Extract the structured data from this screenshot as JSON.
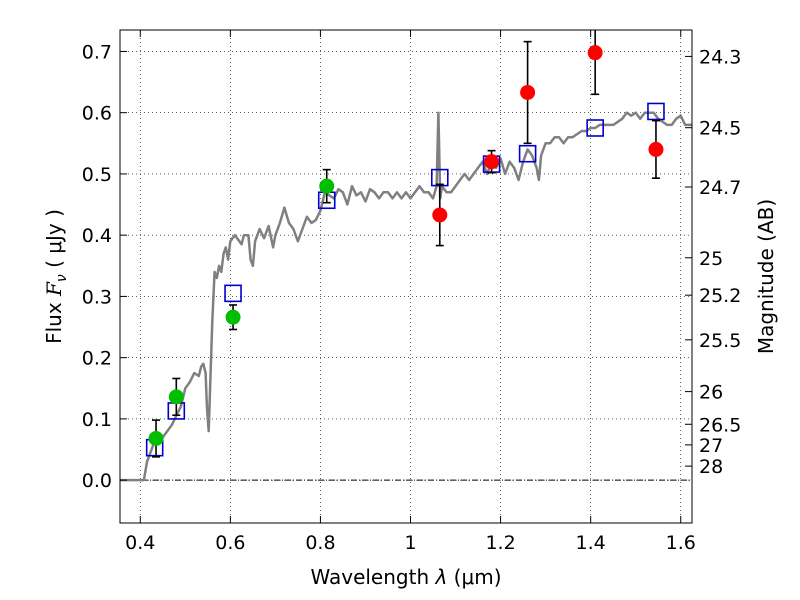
{
  "chart_data": {
    "type": "scatter",
    "xlabel": "Wavelength  λ (μm)",
    "ylabel": "Flux  Fν  ( μJy )",
    "ylabel_parts": {
      "pre": "Flux  ",
      "F": "F",
      "nu": "ν",
      "post": "  ( μJy )"
    },
    "xlabel_parts": {
      "pre": "Wavelength  ",
      "lambda": "λ",
      "post": " (μm)"
    },
    "y2label": "Magnitude (AB)",
    "xlim": [
      0.355,
      1.625
    ],
    "ylim": [
      -0.07,
      0.735
    ],
    "grid": true,
    "x_ticks": [
      {
        "v": 0.4,
        "label": "0.4"
      },
      {
        "v": 0.6,
        "label": "0.6"
      },
      {
        "v": 0.8,
        "label": "0.8"
      },
      {
        "v": 1.0,
        "label": "1"
      },
      {
        "v": 1.2,
        "label": "1.2"
      },
      {
        "v": 1.4,
        "label": "1.4"
      },
      {
        "v": 1.6,
        "label": "1.6"
      }
    ],
    "y_ticks": [
      {
        "v": 0.0,
        "label": "0.0"
      },
      {
        "v": 0.1,
        "label": "0.1"
      },
      {
        "v": 0.2,
        "label": "0.2"
      },
      {
        "v": 0.3,
        "label": "0.3"
      },
      {
        "v": 0.4,
        "label": "0.4"
      },
      {
        "v": 0.5,
        "label": "0.5"
      },
      {
        "v": 0.6,
        "label": "0.6"
      },
      {
        "v": 0.7,
        "label": "0.7"
      }
    ],
    "right_ticks": [
      {
        "mag": 24.3,
        "label": "24.3"
      },
      {
        "mag": 24.5,
        "label": "24.5"
      },
      {
        "mag": 24.7,
        "label": "24.7"
      },
      {
        "mag": 25.0,
        "label": "25"
      },
      {
        "mag": 25.2,
        "label": "25.2"
      },
      {
        "mag": 25.5,
        "label": "25.5"
      },
      {
        "mag": 26.0,
        "label": "26"
      },
      {
        "mag": 26.5,
        "label": "26.5"
      },
      {
        "mag": 27.0,
        "label": "27"
      },
      {
        "mag": 28.0,
        "label": "28"
      }
    ],
    "series": [
      {
        "marker": "circle",
        "color": "#00bf00",
        "points": [
          {
            "x": 0.435,
            "y": 0.068,
            "err": 0.03
          },
          {
            "x": 0.48,
            "y": 0.136,
            "err": 0.03
          },
          {
            "x": 0.606,
            "y": 0.266,
            "err": 0.02
          },
          {
            "x": 0.814,
            "y": 0.48,
            "err": 0.027
          }
        ]
      },
      {
        "marker": "circle",
        "color": "#ff0000",
        "points": [
          {
            "x": 1.065,
            "y": 0.433,
            "err": 0.05
          },
          {
            "x": 1.18,
            "y": 0.52,
            "err": 0.018
          },
          {
            "x": 1.26,
            "y": 0.633,
            "err": 0.083
          },
          {
            "x": 1.41,
            "y": 0.698,
            "err": 0.068
          },
          {
            "x": 1.545,
            "y": 0.54,
            "err": 0.047
          }
        ]
      },
      {
        "marker": "open-square",
        "color": "#0000cc",
        "points": [
          {
            "x": 0.432,
            "y": 0.053
          },
          {
            "x": 0.48,
            "y": 0.113
          },
          {
            "x": 0.606,
            "y": 0.305
          },
          {
            "x": 0.814,
            "y": 0.457
          },
          {
            "x": 1.065,
            "y": 0.494
          },
          {
            "x": 1.18,
            "y": 0.516
          },
          {
            "x": 1.26,
            "y": 0.533
          },
          {
            "x": 1.41,
            "y": 0.575
          },
          {
            "x": 1.545,
            "y": 0.602
          }
        ]
      }
    ],
    "model_spectrum": {
      "color": "#808080",
      "points": [
        [
          0.355,
          0.0
        ],
        [
          0.4,
          0.0
        ],
        [
          0.408,
          0.0
        ],
        [
          0.415,
          0.03
        ],
        [
          0.43,
          0.06
        ],
        [
          0.45,
          0.07
        ],
        [
          0.47,
          0.09
        ],
        [
          0.49,
          0.12
        ],
        [
          0.5,
          0.15
        ],
        [
          0.51,
          0.16
        ],
        [
          0.52,
          0.175
        ],
        [
          0.53,
          0.17
        ],
        [
          0.535,
          0.185
        ],
        [
          0.54,
          0.19
        ],
        [
          0.545,
          0.175
        ],
        [
          0.548,
          0.12
        ],
        [
          0.552,
          0.08
        ],
        [
          0.556,
          0.17
        ],
        [
          0.56,
          0.26
        ],
        [
          0.565,
          0.34
        ],
        [
          0.57,
          0.33
        ],
        [
          0.575,
          0.35
        ],
        [
          0.58,
          0.34
        ],
        [
          0.585,
          0.37
        ],
        [
          0.59,
          0.38
        ],
        [
          0.595,
          0.36
        ],
        [
          0.6,
          0.39
        ],
        [
          0.61,
          0.4
        ],
        [
          0.62,
          0.39
        ],
        [
          0.625,
          0.385
        ],
        [
          0.63,
          0.4
        ],
        [
          0.64,
          0.4
        ],
        [
          0.645,
          0.36
        ],
        [
          0.65,
          0.35
        ],
        [
          0.655,
          0.39
        ],
        [
          0.665,
          0.41
        ],
        [
          0.675,
          0.395
        ],
        [
          0.685,
          0.415
        ],
        [
          0.695,
          0.38
        ],
        [
          0.7,
          0.4
        ],
        [
          0.71,
          0.42
        ],
        [
          0.72,
          0.445
        ],
        [
          0.73,
          0.42
        ],
        [
          0.74,
          0.41
        ],
        [
          0.75,
          0.39
        ],
        [
          0.76,
          0.41
        ],
        [
          0.77,
          0.43
        ],
        [
          0.78,
          0.42
        ],
        [
          0.79,
          0.425
        ],
        [
          0.8,
          0.44
        ],
        [
          0.81,
          0.47
        ],
        [
          0.82,
          0.465
        ],
        [
          0.83,
          0.46
        ],
        [
          0.84,
          0.475
        ],
        [
          0.85,
          0.47
        ],
        [
          0.86,
          0.45
        ],
        [
          0.87,
          0.48
        ],
        [
          0.88,
          0.465
        ],
        [
          0.89,
          0.47
        ],
        [
          0.9,
          0.455
        ],
        [
          0.91,
          0.475
        ],
        [
          0.92,
          0.47
        ],
        [
          0.93,
          0.46
        ],
        [
          0.94,
          0.47
        ],
        [
          0.95,
          0.47
        ],
        [
          0.96,
          0.46
        ],
        [
          0.97,
          0.47
        ],
        [
          0.98,
          0.46
        ],
        [
          0.99,
          0.47
        ],
        [
          1.0,
          0.46
        ],
        [
          1.01,
          0.47
        ],
        [
          1.02,
          0.48
        ],
        [
          1.03,
          0.47
        ],
        [
          1.04,
          0.47
        ],
        [
          1.05,
          0.46
        ],
        [
          1.058,
          0.48
        ],
        [
          1.062,
          0.6
        ],
        [
          1.066,
          0.46
        ],
        [
          1.07,
          0.48
        ],
        [
          1.08,
          0.47
        ],
        [
          1.09,
          0.47
        ],
        [
          1.1,
          0.48
        ],
        [
          1.11,
          0.49
        ],
        [
          1.12,
          0.5
        ],
        [
          1.13,
          0.49
        ],
        [
          1.14,
          0.5
        ],
        [
          1.15,
          0.51
        ],
        [
          1.16,
          0.52
        ],
        [
          1.17,
          0.5
        ],
        [
          1.18,
          0.52
        ],
        [
          1.19,
          0.51
        ],
        [
          1.2,
          0.525
        ],
        [
          1.21,
          0.5
        ],
        [
          1.22,
          0.52
        ],
        [
          1.23,
          0.51
        ],
        [
          1.24,
          0.49
        ],
        [
          1.25,
          0.52
        ],
        [
          1.26,
          0.54
        ],
        [
          1.27,
          0.53
        ],
        [
          1.28,
          0.51
        ],
        [
          1.285,
          0.49
        ],
        [
          1.29,
          0.53
        ],
        [
          1.3,
          0.55
        ],
        [
          1.31,
          0.55
        ],
        [
          1.32,
          0.56
        ],
        [
          1.33,
          0.56
        ],
        [
          1.34,
          0.55
        ],
        [
          1.35,
          0.56
        ],
        [
          1.36,
          0.56
        ],
        [
          1.37,
          0.565
        ],
        [
          1.38,
          0.57
        ],
        [
          1.39,
          0.57
        ],
        [
          1.4,
          0.575
        ],
        [
          1.41,
          0.575
        ],
        [
          1.42,
          0.58
        ],
        [
          1.43,
          0.58
        ],
        [
          1.44,
          0.58
        ],
        [
          1.45,
          0.58
        ],
        [
          1.46,
          0.585
        ],
        [
          1.47,
          0.59
        ],
        [
          1.48,
          0.6
        ],
        [
          1.49,
          0.595
        ],
        [
          1.5,
          0.6
        ],
        [
          1.51,
          0.59
        ],
        [
          1.52,
          0.6
        ],
        [
          1.53,
          0.6
        ],
        [
          1.54,
          0.6
        ],
        [
          1.55,
          0.59
        ],
        [
          1.56,
          0.585
        ],
        [
          1.57,
          0.58
        ],
        [
          1.58,
          0.58
        ],
        [
          1.59,
          0.59
        ],
        [
          1.6,
          0.595
        ],
        [
          1.61,
          0.58
        ],
        [
          1.625,
          0.58
        ]
      ]
    }
  }
}
